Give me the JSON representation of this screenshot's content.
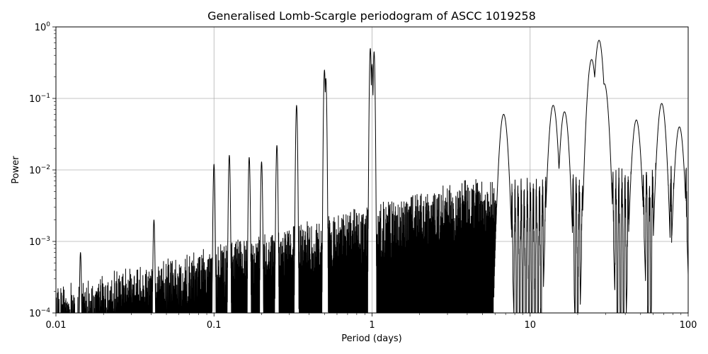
{
  "chart_data": {
    "type": "line",
    "title": "Generalised Lomb-Scargle periodogram of ASCC 1019258",
    "xlabel": "Period (days)",
    "ylabel": "Power",
    "xscale": "log",
    "yscale": "log",
    "xlim": [
      0.01,
      100
    ],
    "ylim": [
      0.0001,
      1
    ],
    "grid": true,
    "line_color": "#000000",
    "x_ticks": [
      {
        "value": 0.01,
        "label": "0.01"
      },
      {
        "value": 0.1,
        "label": "0.1"
      },
      {
        "value": 1,
        "label": "1"
      },
      {
        "value": 10,
        "label": "10"
      },
      {
        "value": 100,
        "label": "100"
      }
    ],
    "y_ticks": [
      {
        "value": 0.0001,
        "base": "10",
        "exp": "−4"
      },
      {
        "value": 0.001,
        "base": "10",
        "exp": "−3"
      },
      {
        "value": 0.01,
        "base": "10",
        "exp": "−2"
      },
      {
        "value": 0.1,
        "base": "10",
        "exp": "−1"
      },
      {
        "value": 1,
        "base": "10",
        "exp": "0"
      }
    ],
    "series": [
      {
        "name": "",
        "approximate_peaks": [
          {
            "period": 0.0143,
            "power": 0.0007
          },
          {
            "period": 0.0417,
            "power": 0.002
          },
          {
            "period": 0.1,
            "power": 0.012
          },
          {
            "period": 0.125,
            "power": 0.016
          },
          {
            "period": 0.167,
            "power": 0.015
          },
          {
            "period": 0.2,
            "power": 0.013
          },
          {
            "period": 0.25,
            "power": 0.022
          },
          {
            "period": 0.333,
            "power": 0.08
          },
          {
            "period": 0.5,
            "power": 0.25
          },
          {
            "period": 0.51,
            "power": 0.19
          },
          {
            "period": 0.975,
            "power": 0.5
          },
          {
            "period": 1.0,
            "power": 0.3
          },
          {
            "period": 1.03,
            "power": 0.45
          },
          {
            "period": 6.8,
            "power": 0.06
          },
          {
            "period": 14,
            "power": 0.08
          },
          {
            "period": 16.5,
            "power": 0.065
          },
          {
            "period": 24.5,
            "power": 0.35
          },
          {
            "period": 27.3,
            "power": 0.65
          },
          {
            "period": 29.5,
            "power": 0.16
          },
          {
            "period": 47,
            "power": 0.05
          },
          {
            "period": 68,
            "power": 0.085
          },
          {
            "period": 88,
            "power": 0.04
          }
        ]
      }
    ]
  }
}
